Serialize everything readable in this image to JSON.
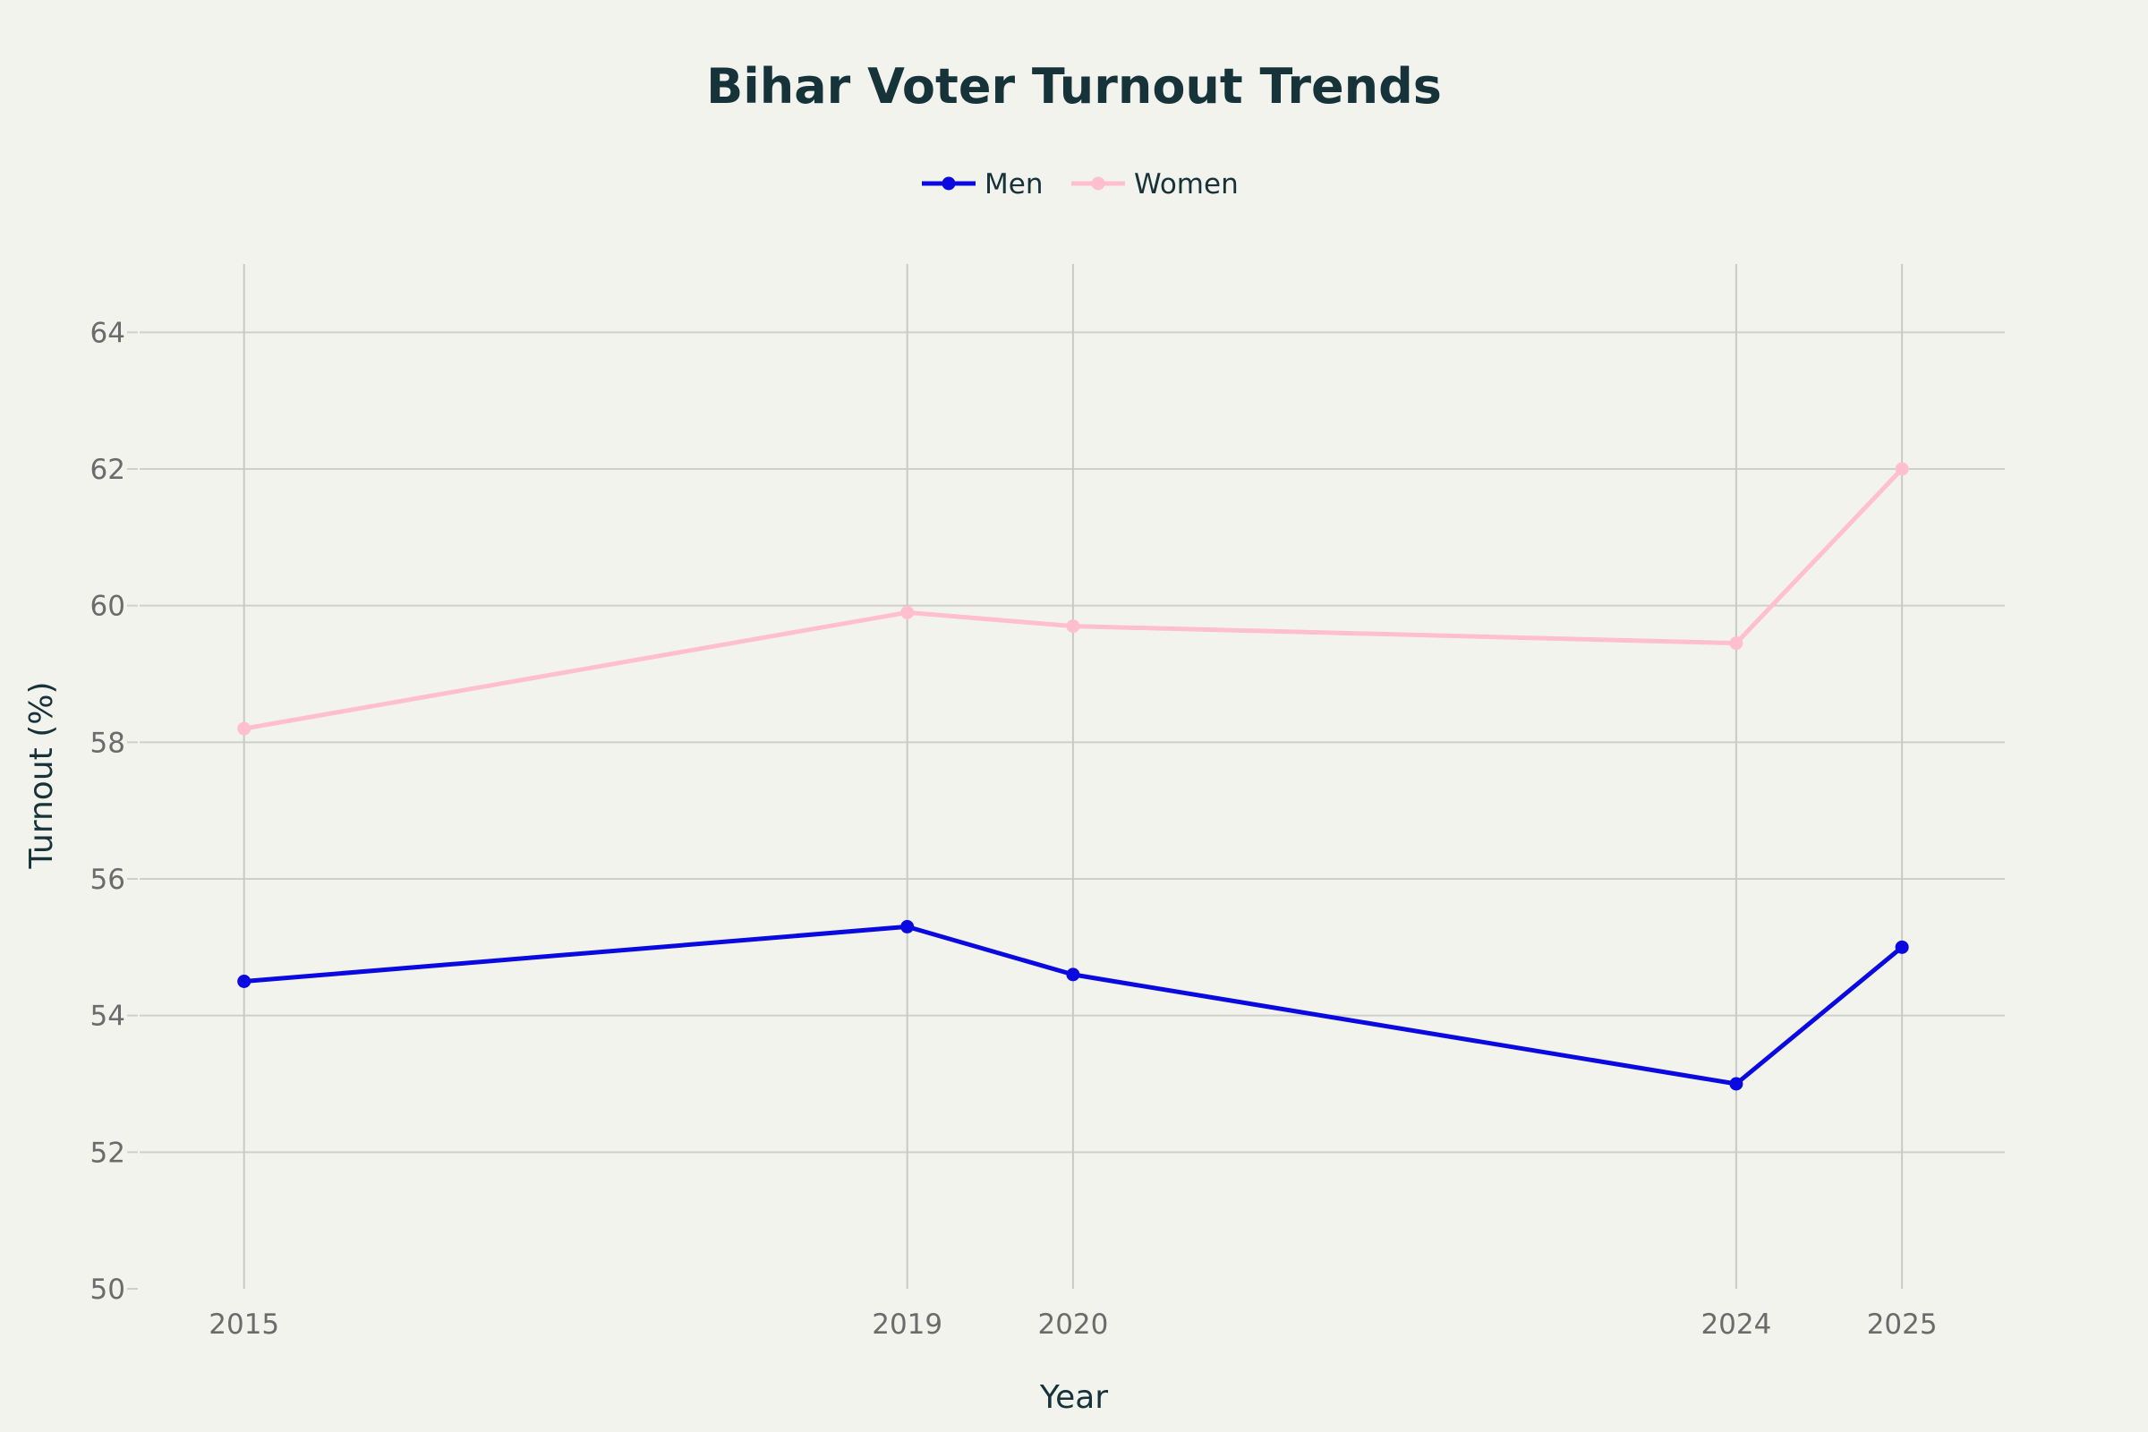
{
  "chart_data": {
    "type": "line",
    "title": "Bihar Voter Turnout Trends",
    "xlabel": "Year",
    "ylabel": "Turnout (%)",
    "x": [
      2015,
      2019,
      2020,
      2024,
      2025
    ],
    "x_tick_labels": [
      "2015",
      "2019",
      "2020",
      "2024",
      "2025"
    ],
    "xlim": [
      2014.37,
      2025.62
    ],
    "ylim": [
      50,
      65
    ],
    "y_ticks": [
      50,
      52,
      54,
      56,
      58,
      60,
      62,
      64
    ],
    "grid": true,
    "legend_position": "top-center",
    "series": [
      {
        "name": "Men",
        "color": "#0a0ae0",
        "values": [
          54.5,
          55.3,
          54.6,
          53.0,
          55.0
        ]
      },
      {
        "name": "Women",
        "color": "#ffbfcc",
        "values": [
          58.2,
          59.9,
          59.7,
          59.45,
          62.0
        ]
      }
    ]
  }
}
